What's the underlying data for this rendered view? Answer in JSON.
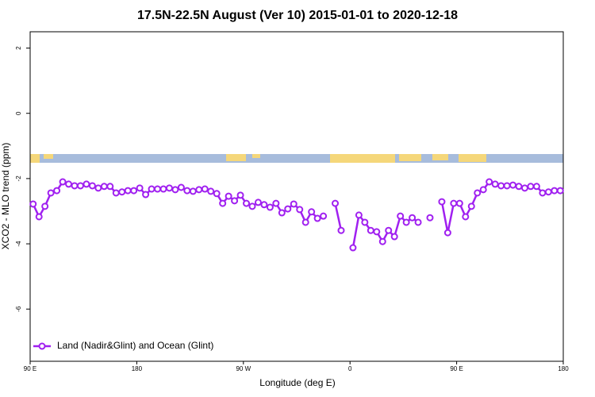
{
  "chart_data": {
    "type": "line",
    "title": "17.5N-22.5N August (Ver 10)   2015-01-01 to 2020-12-18",
    "x_label": "Longitude (deg E)",
    "y_label": "XCO2 - MLO trend (ppm)",
    "xlim": [
      90,
      540
    ],
    "xticks": [
      {
        "value": 90,
        "label": "90 E"
      },
      180,
      {
        "value": 270,
        "label": "90 W"
      },
      {
        "value": 360,
        "label": "0"
      },
      {
        "value": 450,
        "label": "90 E"
      },
      {
        "value": 540,
        "label": "180"
      }
    ],
    "ylim": [
      -7.6,
      2.5
    ],
    "yticks": [
      2,
      0,
      -2,
      -4,
      -6
    ],
    "legend": "bottom-left",
    "x": [
      92.5,
      97.5,
      102.5,
      107.5,
      112.5,
      117.5,
      122.5,
      127.5,
      132.5,
      137.5,
      142.5,
      147.5,
      152.5,
      157.5,
      162.5,
      167.5,
      172.5,
      177.5,
      182.5,
      187.5,
      192.5,
      197.5,
      202.5,
      207.5,
      212.5,
      217.5,
      222.5,
      227.5,
      232.5,
      237.5,
      242.5,
      247.5,
      252.5,
      257.5,
      262.5,
      267.5,
      272.5,
      277.5,
      282.5,
      287.5,
      292.5,
      297.5,
      302.5,
      307.5,
      312.5,
      317.5,
      322.5,
      327.5,
      332.5,
      337.5,
      342.5,
      347.5,
      352.5,
      357.5,
      362.5,
      367.5,
      372.5,
      377.5,
      382.5,
      387.5,
      392.5,
      397.5,
      402.5,
      407.5,
      412.5,
      417.5,
      422.5,
      427.5,
      432.5,
      437.5,
      442.5,
      447.5,
      452.5,
      457.5,
      462.5,
      467.5,
      472.5,
      477.5,
      482.5,
      487.5,
      492.5,
      497.5,
      502.5,
      507.5,
      512.5,
      517.5,
      522.5,
      527.5,
      532.5,
      537.5
    ],
    "series": [
      {
        "name": "Land (Nadir&Glint) and Ocean (Glint)",
        "color": "#a020f0",
        "values": [
          -2.78,
          -3.17,
          -2.85,
          -2.44,
          -2.37,
          -2.1,
          -2.17,
          -2.22,
          -2.22,
          -2.17,
          -2.22,
          -2.29,
          -2.24,
          -2.24,
          -2.44,
          -2.41,
          -2.37,
          -2.37,
          -2.29,
          -2.49,
          -2.32,
          -2.32,
          -2.32,
          -2.29,
          -2.34,
          -2.27,
          -2.37,
          -2.39,
          -2.34,
          -2.32,
          -2.39,
          -2.46,
          -2.76,
          -2.54,
          -2.68,
          -2.51,
          -2.76,
          -2.85,
          -2.73,
          -2.8,
          -2.88,
          -2.76,
          -3.05,
          -2.93,
          -2.78,
          -2.95,
          -3.34,
          -3.02,
          -3.22,
          -3.15,
          null,
          -2.76,
          -3.59,
          null,
          -4.12,
          -3.12,
          -3.34,
          -3.59,
          -3.63,
          -3.93,
          -3.59,
          -3.78,
          -3.15,
          -3.34,
          -3.2,
          -3.34,
          null,
          -3.2,
          null,
          -2.71,
          -3.66,
          -2.76,
          -2.76,
          -3.17,
          -2.85,
          -2.44,
          -2.34,
          -2.1,
          -2.17,
          -2.22,
          -2.22,
          -2.2,
          -2.24,
          -2.29,
          -2.24,
          -2.24,
          -2.44,
          -2.41,
          -2.37,
          -2.37
        ]
      }
    ]
  }
}
